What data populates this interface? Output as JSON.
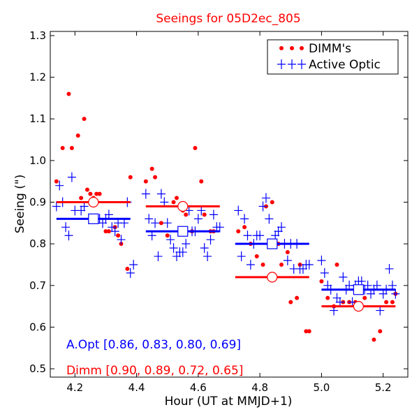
{
  "chart_data": {
    "type": "scatter",
    "title": "Seeings for 05D2ec_805",
    "xlabel": "Hour (UT at MMJD+1)",
    "ylabel": "Seeing (\")",
    "xlim": [
      4.12,
      5.28
    ],
    "ylim": [
      0.48,
      1.31
    ],
    "xticks": [
      "4.2",
      "4.4",
      "4.6",
      "4.8",
      "5.0",
      "5.2"
    ],
    "yticks": [
      "0.5",
      "0.6",
      "0.7",
      "0.8",
      "0.9",
      "1.0",
      "1.1",
      "1.2",
      "1.3"
    ],
    "legend": {
      "position": "top-right",
      "entries": [
        "DIMM's",
        "Active Optic"
      ]
    },
    "annotations": {
      "aopt": "A.Opt [0.86, 0.83, 0.80, 0.69]",
      "dimm": "Dimm [0.90, 0.89, 0.72, 0.65]"
    },
    "colors": {
      "dimm": "#ff0000",
      "aopt": "#0000ff",
      "title": "#ff0000"
    },
    "series": [
      {
        "name": "DIMM's",
        "points": [
          [
            4.14,
            0.95
          ],
          [
            4.16,
            1.03
          ],
          [
            4.18,
            1.16
          ],
          [
            4.19,
            1.03
          ],
          [
            4.21,
            1.06
          ],
          [
            4.22,
            0.91
          ],
          [
            4.23,
            1.1
          ],
          [
            4.24,
            0.93
          ],
          [
            4.25,
            0.92
          ],
          [
            4.26,
            0.91
          ],
          [
            4.27,
            0.92
          ],
          [
            4.28,
            0.92
          ],
          [
            4.3,
            0.83
          ],
          [
            4.31,
            0.83
          ],
          [
            4.33,
            0.84
          ],
          [
            4.34,
            0.82
          ],
          [
            4.35,
            0.8
          ],
          [
            4.37,
            0.74
          ],
          [
            4.38,
            0.96
          ],
          [
            4.43,
            0.95
          ],
          [
            4.45,
            0.98
          ],
          [
            4.46,
            0.96
          ],
          [
            4.48,
            0.85
          ],
          [
            4.5,
            0.82
          ],
          [
            4.52,
            0.9
          ],
          [
            4.53,
            0.91
          ],
          [
            4.55,
            0.88
          ],
          [
            4.56,
            0.87
          ],
          [
            4.58,
            0.83
          ],
          [
            4.59,
            1.03
          ],
          [
            4.61,
            0.95
          ],
          [
            4.62,
            0.87
          ],
          [
            4.64,
            0.83
          ],
          [
            4.65,
            0.83
          ],
          [
            4.73,
            0.83
          ],
          [
            4.75,
            0.84
          ],
          [
            4.77,
            0.8
          ],
          [
            4.79,
            0.77
          ],
          [
            4.81,
            0.75
          ],
          [
            4.82,
            0.89
          ],
          [
            4.84,
            0.9
          ],
          [
            4.86,
            0.8
          ],
          [
            4.87,
            0.75
          ],
          [
            4.89,
            0.78
          ],
          [
            4.9,
            0.66
          ],
          [
            4.92,
            0.67
          ],
          [
            4.93,
            0.75
          ],
          [
            4.95,
            0.59
          ],
          [
            4.96,
            0.59
          ],
          [
            5.0,
            0.71
          ],
          [
            5.02,
            0.67
          ],
          [
            5.04,
            0.65
          ],
          [
            5.05,
            0.75
          ],
          [
            5.07,
            0.66
          ],
          [
            5.09,
            0.66
          ],
          [
            5.11,
            0.66
          ],
          [
            5.12,
            0.65
          ],
          [
            5.14,
            0.67
          ],
          [
            5.17,
            0.57
          ],
          [
            5.19,
            0.59
          ],
          [
            5.21,
            0.66
          ],
          [
            5.23,
            0.66
          ],
          [
            5.24,
            0.68
          ]
        ]
      },
      {
        "name": "Active Optic",
        "points": [
          [
            4.14,
            0.89
          ],
          [
            4.15,
            0.94
          ],
          [
            4.16,
            0.9
          ],
          [
            4.17,
            0.84
          ],
          [
            4.18,
            0.82
          ],
          [
            4.19,
            0.96
          ],
          [
            4.2,
            0.88
          ],
          [
            4.22,
            0.88
          ],
          [
            4.23,
            0.89
          ],
          [
            4.25,
            0.86
          ],
          [
            4.26,
            0.9
          ],
          [
            4.27,
            0.86
          ],
          [
            4.28,
            0.86
          ],
          [
            4.29,
            0.85
          ],
          [
            4.3,
            0.86
          ],
          [
            4.31,
            0.87
          ],
          [
            4.32,
            0.84
          ],
          [
            4.33,
            0.83
          ],
          [
            4.34,
            0.85
          ],
          [
            4.35,
            0.81
          ],
          [
            4.36,
            0.85
          ],
          [
            4.37,
            0.9
          ],
          [
            4.38,
            0.73
          ],
          [
            4.39,
            0.75
          ],
          [
            4.43,
            0.92
          ],
          [
            4.44,
            0.86
          ],
          [
            4.45,
            0.82
          ],
          [
            4.46,
            0.85
          ],
          [
            4.47,
            0.77
          ],
          [
            4.48,
            0.92
          ],
          [
            4.49,
            0.9
          ],
          [
            4.5,
            0.85
          ],
          [
            4.51,
            0.81
          ],
          [
            4.52,
            0.79
          ],
          [
            4.53,
            0.77
          ],
          [
            4.54,
            0.78
          ],
          [
            4.55,
            0.78
          ],
          [
            4.56,
            0.8
          ],
          [
            4.57,
            0.88
          ],
          [
            4.58,
            0.83
          ],
          [
            4.59,
            0.83
          ],
          [
            4.6,
            0.86
          ],
          [
            4.61,
            0.88
          ],
          [
            4.62,
            0.79
          ],
          [
            4.63,
            0.77
          ],
          [
            4.64,
            0.81
          ],
          [
            4.65,
            0.87
          ],
          [
            4.66,
            0.84
          ],
          [
            4.67,
            0.84
          ],
          [
            4.73,
            0.88
          ],
          [
            4.74,
            0.77
          ],
          [
            4.75,
            0.86
          ],
          [
            4.76,
            0.82
          ],
          [
            4.77,
            0.75
          ],
          [
            4.78,
            0.8
          ],
          [
            4.79,
            0.82
          ],
          [
            4.8,
            0.82
          ],
          [
            4.81,
            0.89
          ],
          [
            4.82,
            0.91
          ],
          [
            4.83,
            0.86
          ],
          [
            4.84,
            0.8
          ],
          [
            4.85,
            0.82
          ],
          [
            4.86,
            0.83
          ],
          [
            4.87,
            0.84
          ],
          [
            4.88,
            0.8
          ],
          [
            4.89,
            0.76
          ],
          [
            4.9,
            0.8
          ],
          [
            4.91,
            0.74
          ],
          [
            4.92,
            0.8
          ],
          [
            4.93,
            0.74
          ],
          [
            4.94,
            0.74
          ],
          [
            4.95,
            0.75
          ],
          [
            4.96,
            0.75
          ],
          [
            5.0,
            0.76
          ],
          [
            5.01,
            0.73
          ],
          [
            5.02,
            0.7
          ],
          [
            5.03,
            0.69
          ],
          [
            5.04,
            0.64
          ],
          [
            5.05,
            0.67
          ],
          [
            5.06,
            0.66
          ],
          [
            5.07,
            0.72
          ],
          [
            5.08,
            0.69
          ],
          [
            5.09,
            0.7
          ],
          [
            5.1,
            0.66
          ],
          [
            5.11,
            0.7
          ],
          [
            5.12,
            0.71
          ],
          [
            5.13,
            0.71
          ],
          [
            5.14,
            0.69
          ],
          [
            5.15,
            0.7
          ],
          [
            5.16,
            0.68
          ],
          [
            5.17,
            0.69
          ],
          [
            5.18,
            0.7
          ],
          [
            5.19,
            0.64
          ],
          [
            5.2,
            0.68
          ],
          [
            5.21,
            0.69
          ],
          [
            5.22,
            0.74
          ],
          [
            5.23,
            0.7
          ],
          [
            5.24,
            0.68
          ]
        ]
      }
    ],
    "bins": [
      {
        "x_range": [
          4.14,
          4.38
        ],
        "center": 4.26,
        "dimm": 0.9,
        "aopt": 0.86
      },
      {
        "x_range": [
          4.43,
          4.67
        ],
        "center": 4.55,
        "dimm": 0.89,
        "aopt": 0.83
      },
      {
        "x_range": [
          4.72,
          4.96
        ],
        "center": 4.84,
        "dimm": 0.72,
        "aopt": 0.8
      },
      {
        "x_range": [
          5.0,
          5.24
        ],
        "center": 5.12,
        "dimm": 0.65,
        "aopt": 0.69
      }
    ]
  }
}
